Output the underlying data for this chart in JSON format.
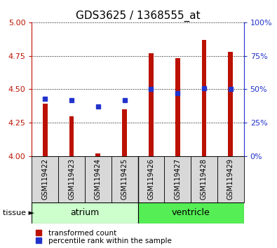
{
  "title": "GDS3625 / 1368555_at",
  "samples": [
    "GSM119422",
    "GSM119423",
    "GSM119424",
    "GSM119425",
    "GSM119426",
    "GSM119427",
    "GSM119428",
    "GSM119429"
  ],
  "bar_values": [
    4.39,
    4.3,
    4.02,
    4.35,
    4.77,
    4.73,
    4.87,
    4.78
  ],
  "percentile_values": [
    43,
    42,
    37,
    42,
    50,
    47,
    51,
    50
  ],
  "bar_baseline": 4.0,
  "ylim_left": [
    4.0,
    5.0
  ],
  "ylim_right": [
    0,
    100
  ],
  "yticks_left": [
    4.0,
    4.25,
    4.5,
    4.75,
    5.0
  ],
  "yticks_right": [
    0,
    25,
    50,
    75,
    100
  ],
  "ytick_labels_right": [
    "0%",
    "25%",
    "50%",
    "75%",
    "100%"
  ],
  "bar_color": "#bb1100",
  "dot_color": "#2233cc",
  "left_axis_color": "#bb1100",
  "right_axis_color": "#2233cc",
  "tissue_groups": [
    {
      "label": "atrium",
      "start": 0,
      "end": 3,
      "color": "#ccffcc"
    },
    {
      "label": "ventricle",
      "start": 4,
      "end": 7,
      "color": "#55ee55"
    }
  ],
  "tissue_label": "tissue ►",
  "legend_items": [
    {
      "label": "transformed count",
      "color": "#bb1100",
      "marker": "s"
    },
    {
      "label": "percentile rank within the sample",
      "color": "#2233cc",
      "marker": "s"
    }
  ],
  "grid_style": "dotted",
  "bar_width": 0.18,
  "title_fontsize": 11,
  "tick_fontsize": 8,
  "sample_fontsize": 7,
  "tissue_fontsize": 9,
  "legend_fontsize": 7.5
}
